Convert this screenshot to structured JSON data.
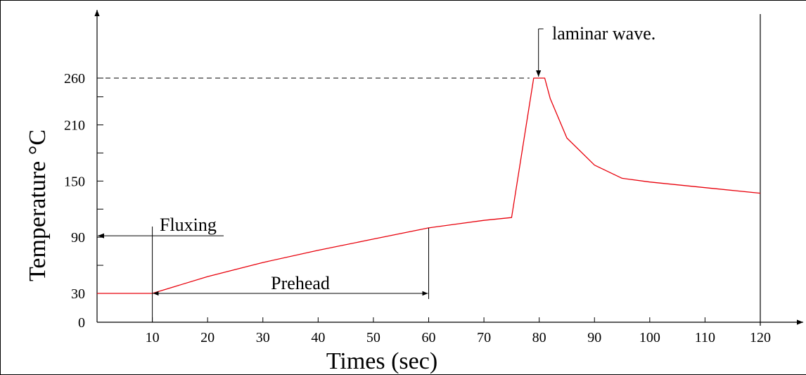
{
  "chart_data": {
    "type": "line",
    "xlabel": "Times (sec)",
    "ylabel": "Temperature °C",
    "xlim": [
      0,
      120
    ],
    "ylim": [
      0,
      320
    ],
    "x_ticks": [
      10,
      20,
      30,
      40,
      50,
      60,
      70,
      80,
      90,
      100,
      110,
      120
    ],
    "x_tick_labels": [
      "10",
      "20",
      "30",
      "40",
      "50",
      "60",
      "70",
      "80",
      "90",
      "100",
      "110",
      "120"
    ],
    "y_ticks": [
      0,
      30,
      90,
      150,
      210,
      260
    ],
    "y_tick_labels": [
      "0",
      "30",
      "90",
      "150",
      "210",
      "260"
    ],
    "y_minor_ticks": [
      60,
      120,
      180,
      240
    ],
    "series": [
      {
        "color": "#e8000b",
        "x": [
          0,
          10,
          20,
          30,
          40,
          50,
          60,
          65,
          70,
          75,
          79,
          81,
          82,
          85,
          90,
          95,
          100,
          110,
          120
        ],
        "y": [
          30,
          30,
          48,
          63,
          76,
          88,
          100,
          104,
          108,
          111,
          260,
          260,
          238,
          196,
          167,
          153,
          149,
          143,
          137
        ]
      }
    ],
    "reference_lines": [
      {
        "axis": "y",
        "value": 260,
        "x_range": [
          0,
          79
        ],
        "style": "dashed"
      },
      {
        "axis": "x",
        "value": 120,
        "style": "solid"
      }
    ],
    "annotations": [
      {
        "text": "Fluxing",
        "x_range": [
          0,
          10
        ],
        "y": 90
      },
      {
        "text": "Prehead",
        "x_range": [
          10,
          60
        ],
        "y": 30
      },
      {
        "text": "laminar wave.",
        "x": 80,
        "y": 260
      }
    ]
  }
}
